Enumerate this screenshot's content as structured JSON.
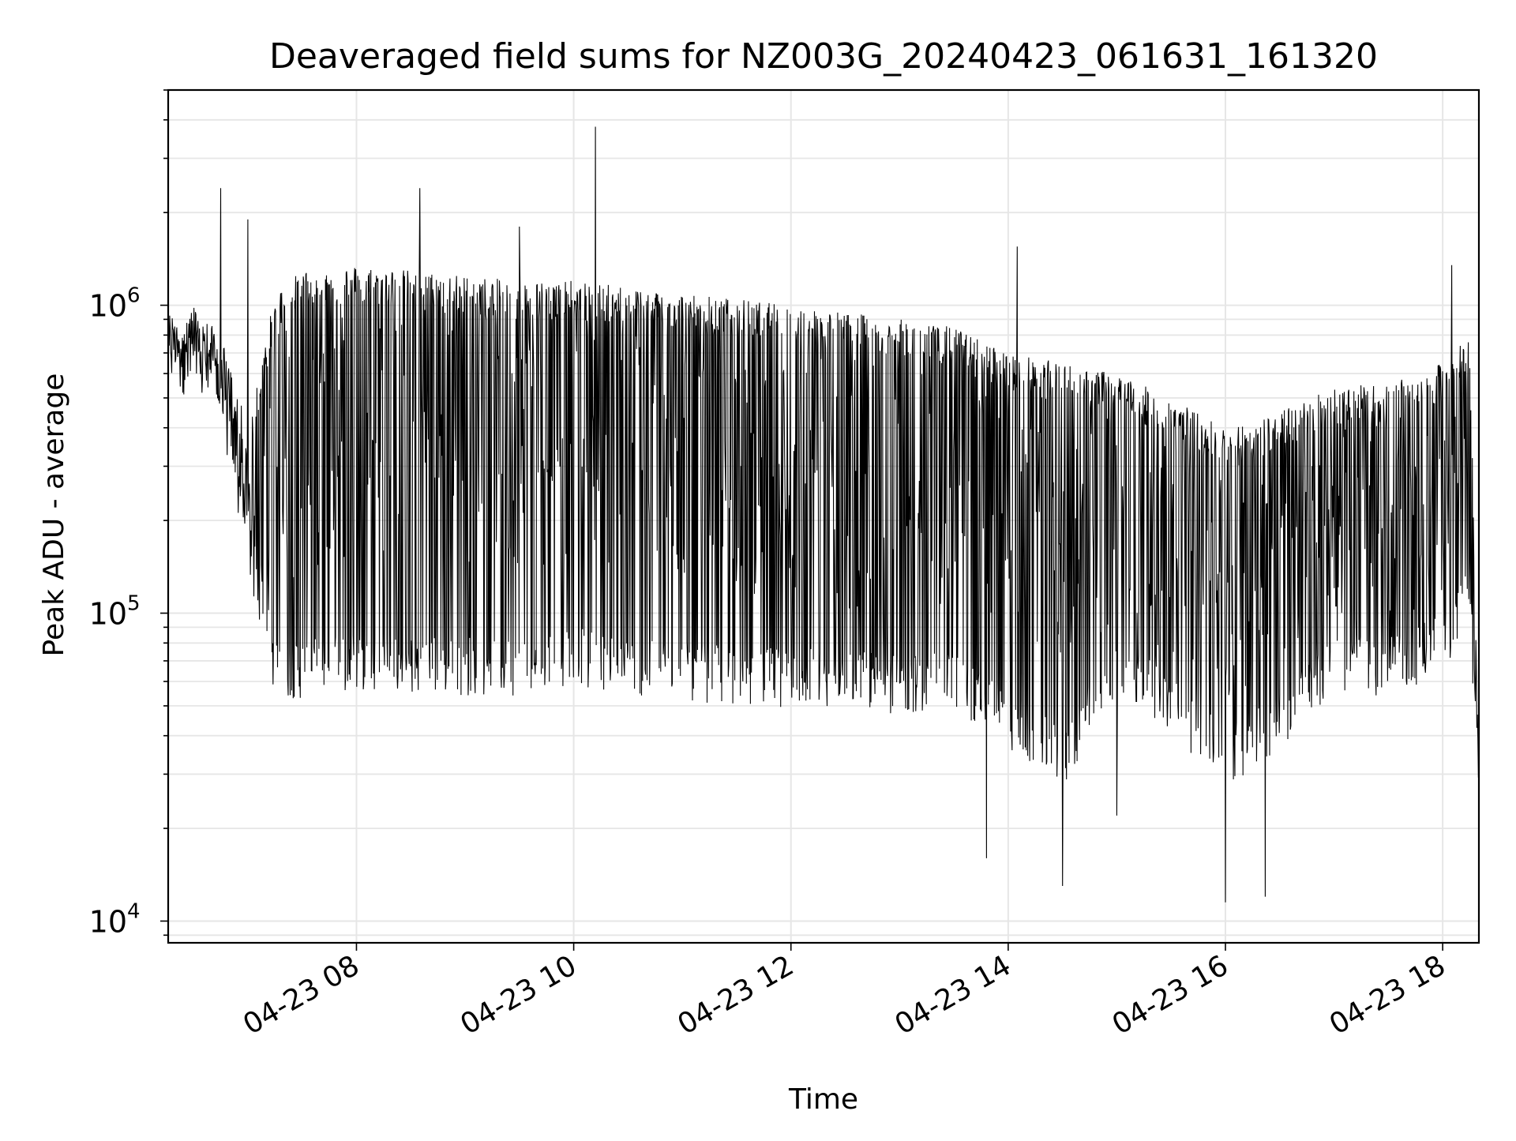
{
  "chart_data": {
    "type": "line",
    "title": "Deaveraged field sums for NZ003G_20240423_061631_161320",
    "xlabel": "Time",
    "ylabel": "Peak ADU - average",
    "yscale": "log",
    "ylim": [
      8500,
      5000000
    ],
    "xlim": [
      "2024-04-23 06:16",
      "2024-04-23 18:20"
    ],
    "grid": true,
    "x_tick_labels": [
      "04-23 08",
      "04-23 10",
      "04-23 12",
      "04-23 14",
      "04-23 16",
      "04-23 18"
    ],
    "y_tick_labels": [
      {
        "base": "10",
        "exp": "4"
      },
      {
        "base": "10",
        "exp": "5"
      },
      {
        "base": "10",
        "exp": "6"
      }
    ],
    "series": [
      {
        "color": "#000000",
        "envelope": {
          "time": [
            "2024-04-23 06:16",
            "2024-04-23 06:30",
            "2024-04-23 06:45",
            "2024-04-23 07:00",
            "2024-04-23 07:15",
            "2024-04-23 07:30",
            "2024-04-23 08:00",
            "2024-04-23 08:30",
            "2024-04-23 09:00",
            "2024-04-23 09:30",
            "2024-04-23 10:00",
            "2024-04-23 10:30",
            "2024-04-23 11:00",
            "2024-04-23 11:30",
            "2024-04-23 12:00",
            "2024-04-23 12:30",
            "2024-04-23 13:00",
            "2024-04-23 13:30",
            "2024-04-23 14:00",
            "2024-04-23 14:30",
            "2024-04-23 15:00",
            "2024-04-23 15:30",
            "2024-04-23 16:00",
            "2024-04-23 16:30",
            "2024-04-23 17:00",
            "2024-04-23 17:30",
            "2024-04-23 18:00",
            "2024-04-23 18:15",
            "2024-04-23 18:20"
          ],
          "high": [
            950000,
            1000000,
            800000,
            400000,
            1100000,
            1300000,
            1350000,
            1300000,
            1250000,
            1200000,
            1200000,
            1150000,
            1100000,
            1050000,
            1000000,
            950000,
            900000,
            850000,
            700000,
            650000,
            600000,
            500000,
            400000,
            450000,
            550000,
            550000,
            650000,
            800000,
            30000
          ],
          "low": [
            600000,
            550000,
            450000,
            150000,
            60000,
            58000,
            62000,
            60000,
            60000,
            60000,
            65000,
            60000,
            58000,
            55000,
            55000,
            55000,
            52000,
            55000,
            40000,
            30000,
            60000,
            45000,
            30000,
            40000,
            60000,
            60000,
            70000,
            100000,
            25000
          ],
          "typical": [
            750000,
            750000,
            600000,
            200000,
            300000,
            400000,
            450000,
            450000,
            420000,
            400000,
            400000,
            380000,
            360000,
            330000,
            300000,
            280000,
            260000,
            250000,
            220000,
            190000,
            200000,
            160000,
            120000,
            150000,
            200000,
            200000,
            230000,
            300000,
            27000
          ]
        },
        "spikes": [
          {
            "time": "2024-04-23 06:45",
            "value": 2400000
          },
          {
            "time": "2024-04-23 07:00",
            "value": 1900000
          },
          {
            "time": "2024-04-23 08:35",
            "value": 2400000
          },
          {
            "time": "2024-04-23 09:30",
            "value": 1800000
          },
          {
            "time": "2024-04-23 10:12",
            "value": 3800000
          },
          {
            "time": "2024-04-23 14:05",
            "value": 1550000
          },
          {
            "time": "2024-04-23 18:05",
            "value": 1350000
          },
          {
            "time": "2024-04-23 13:48",
            "value": 16000
          },
          {
            "time": "2024-04-23 14:30",
            "value": 13000
          },
          {
            "time": "2024-04-23 16:00",
            "value": 11500
          },
          {
            "time": "2024-04-23 16:22",
            "value": 12000
          },
          {
            "time": "2024-04-23 15:00",
            "value": 22000
          }
        ]
      }
    ]
  }
}
